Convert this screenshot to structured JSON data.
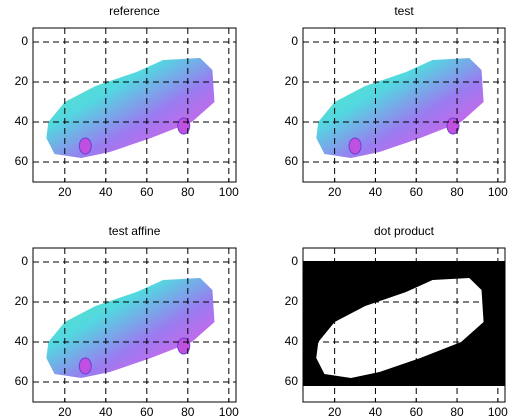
{
  "chart_data": [
    {
      "type": "image",
      "title": "reference",
      "xlim": [
        4.5,
        103.5
      ],
      "ylim": [
        -7,
        70
      ],
      "y_reversed": true,
      "xticks": [
        20,
        40,
        60,
        80,
        100
      ],
      "yticks": [
        0,
        20,
        40,
        60
      ],
      "grid": true
    },
    {
      "type": "image",
      "title": "test",
      "xlim": [
        4.5,
        103.5
      ],
      "ylim": [
        -7,
        70
      ],
      "y_reversed": true,
      "xticks": [
        20,
        40,
        60,
        80,
        100
      ],
      "yticks": [
        0,
        20,
        40,
        60
      ],
      "grid": true
    },
    {
      "type": "image",
      "title": "test affine",
      "xlim": [
        4.5,
        103.5
      ],
      "ylim": [
        -7,
        70
      ],
      "y_reversed": true,
      "xticks": [
        20,
        40,
        60,
        80,
        100
      ],
      "yticks": [
        0,
        20,
        40,
        60
      ],
      "grid": true
    },
    {
      "type": "image",
      "title": "dot product",
      "xlim": [
        4.5,
        103.5
      ],
      "ylim": [
        -7,
        70
      ],
      "y_reversed": true,
      "xticks": [
        20,
        40,
        60,
        80,
        100
      ],
      "yticks": [
        0,
        20,
        40,
        60
      ],
      "grid": true
    }
  ]
}
